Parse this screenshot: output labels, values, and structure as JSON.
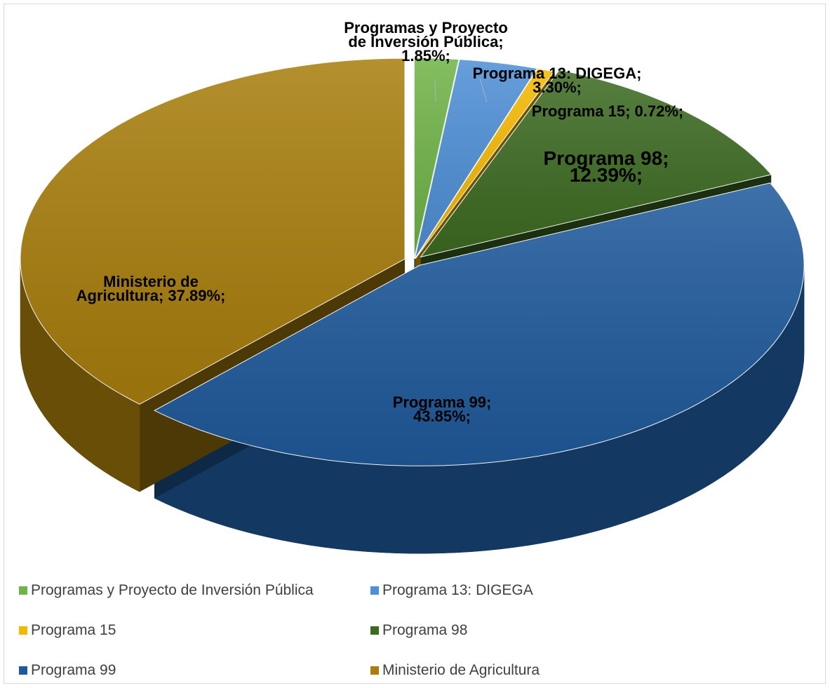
{
  "chart_data": {
    "type": "pie",
    "title": "",
    "style": "3d-exploded",
    "legend_position": "bottom",
    "slices": [
      {
        "name": "Programas y Proyecto de Inversión Pública",
        "value": 1.85,
        "label_lines": [
          "Programas y Proyecto",
          "de Inversión Pública;",
          "1.85%;"
        ],
        "color": "#6fb447"
      },
      {
        "name": "Programa 13: DIGEGA",
        "value": 3.3,
        "label_lines": [
          "Programa 13: DIGEGA;",
          "3.30%;"
        ],
        "color": "#4e8fd6"
      },
      {
        "name": "Programa 15",
        "value": 0.72,
        "label_lines": [
          "Programa 15; 0.72%;"
        ],
        "color": "#f5b800"
      },
      {
        "name": "Programa 98",
        "value": 12.39,
        "label_lines": [
          "Programa 98;",
          "12.39%;"
        ],
        "color": "#3d6b22"
      },
      {
        "name": "Programa 99",
        "value": 43.85,
        "label_lines": [
          "Programa 99;",
          "43.85%;"
        ],
        "color": "#1f5a9c"
      },
      {
        "name": "Ministerio de Agricultura",
        "value": 37.89,
        "label_lines": [
          "Ministerio de",
          "Agricultura; 37.89%;"
        ],
        "color": "#a87e0c"
      }
    ]
  }
}
